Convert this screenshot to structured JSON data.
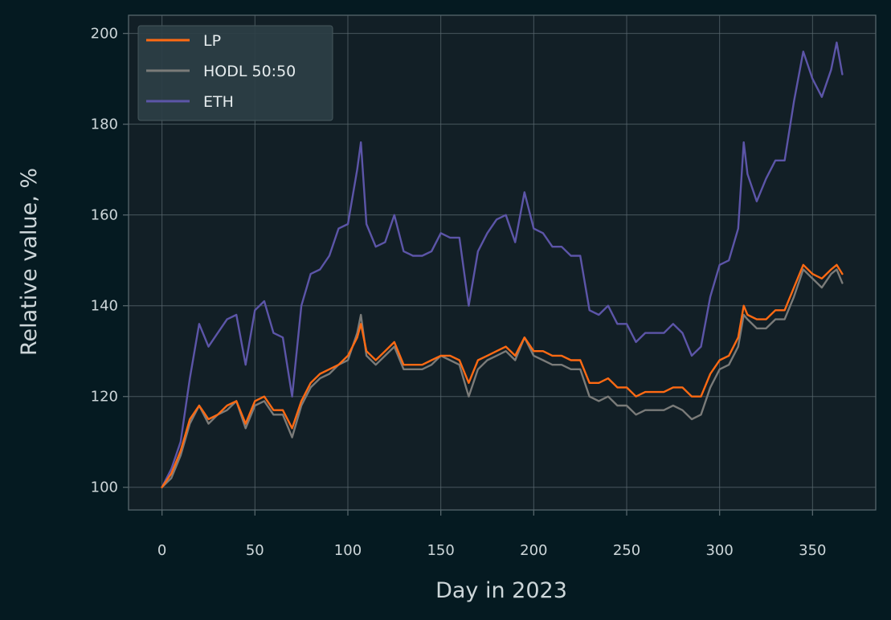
{
  "chart_data": {
    "type": "line",
    "xlabel": "Day in 2023",
    "ylabel": "Relative value, %",
    "xlim": [
      -18,
      384
    ],
    "ylim": [
      95,
      204
    ],
    "xticks": [
      0,
      50,
      100,
      150,
      200,
      250,
      300,
      350
    ],
    "yticks": [
      100,
      120,
      140,
      160,
      180,
      200
    ],
    "grid": true,
    "legend_position": "upper-left",
    "colors": {
      "background": "#051a21",
      "plot_background": "#121f26",
      "grid": "#5b6a70",
      "spine": "#56666c",
      "text": "#cdd6d9"
    },
    "series": [
      {
        "name": "LP",
        "color": "#ff6a13",
        "x": [
          0,
          5,
          10,
          15,
          20,
          25,
          30,
          35,
          40,
          45,
          50,
          55,
          60,
          65,
          70,
          75,
          80,
          85,
          90,
          95,
          100,
          105,
          107,
          110,
          115,
          120,
          125,
          130,
          135,
          140,
          145,
          150,
          155,
          160,
          165,
          170,
          175,
          180,
          185,
          190,
          195,
          200,
          205,
          210,
          215,
          220,
          225,
          230,
          235,
          240,
          245,
          250,
          255,
          260,
          265,
          270,
          275,
          280,
          285,
          290,
          295,
          300,
          305,
          310,
          313,
          315,
          320,
          325,
          330,
          335,
          340,
          345,
          350,
          355,
          360,
          363,
          366
        ],
        "y": [
          100,
          103,
          108,
          115,
          118,
          115,
          116,
          118,
          119,
          114,
          119,
          120,
          117,
          117,
          113,
          119,
          123,
          125,
          126,
          127,
          129,
          133,
          136,
          130,
          128,
          130,
          132,
          127,
          127,
          127,
          128,
          129,
          129,
          128,
          123,
          128,
          129,
          130,
          131,
          129,
          133,
          130,
          130,
          129,
          129,
          128,
          128,
          123,
          123,
          124,
          122,
          122,
          120,
          121,
          121,
          121,
          122,
          122,
          120,
          120,
          125,
          128,
          129,
          133,
          140,
          138,
          137,
          137,
          139,
          139,
          144,
          149,
          147,
          146,
          148,
          149,
          147
        ]
      },
      {
        "name": "HODL 50:50",
        "color": "#7a7b79",
        "x": [
          0,
          5,
          10,
          15,
          20,
          25,
          30,
          35,
          40,
          45,
          50,
          55,
          60,
          65,
          70,
          75,
          80,
          85,
          90,
          95,
          100,
          105,
          107,
          110,
          115,
          120,
          125,
          130,
          135,
          140,
          145,
          150,
          155,
          160,
          165,
          170,
          175,
          180,
          185,
          190,
          195,
          200,
          205,
          210,
          215,
          220,
          225,
          230,
          235,
          240,
          245,
          250,
          255,
          260,
          265,
          270,
          275,
          280,
          285,
          290,
          295,
          300,
          305,
          310,
          313,
          315,
          320,
          325,
          330,
          335,
          340,
          345,
          350,
          355,
          360,
          363,
          366
        ],
        "y": [
          100,
          102,
          107,
          114,
          118,
          114,
          116,
          117,
          119,
          113,
          118,
          119,
          116,
          116,
          111,
          118,
          122,
          124,
          125,
          127,
          128,
          134,
          138,
          129,
          127,
          129,
          131,
          126,
          126,
          126,
          127,
          129,
          128,
          127,
          120,
          126,
          128,
          129,
          130,
          128,
          133,
          129,
          128,
          127,
          127,
          126,
          126,
          120,
          119,
          120,
          118,
          118,
          116,
          117,
          117,
          117,
          118,
          117,
          115,
          116,
          122,
          126,
          127,
          131,
          138,
          137,
          135,
          135,
          137,
          137,
          142,
          148,
          146,
          144,
          147,
          148,
          145
        ]
      },
      {
        "name": "ETH",
        "color": "#5c55a8",
        "x": [
          0,
          5,
          10,
          15,
          20,
          25,
          30,
          35,
          40,
          45,
          50,
          55,
          60,
          65,
          70,
          75,
          80,
          85,
          90,
          95,
          100,
          105,
          107,
          110,
          115,
          120,
          125,
          130,
          135,
          140,
          145,
          150,
          155,
          160,
          165,
          170,
          175,
          180,
          185,
          190,
          195,
          200,
          205,
          210,
          215,
          220,
          225,
          230,
          235,
          240,
          245,
          250,
          255,
          260,
          265,
          270,
          275,
          280,
          285,
          290,
          295,
          300,
          305,
          310,
          313,
          315,
          320,
          325,
          330,
          335,
          340,
          345,
          350,
          355,
          360,
          363,
          366
        ],
        "y": [
          100,
          104,
          110,
          124,
          136,
          131,
          134,
          137,
          138,
          127,
          139,
          141,
          134,
          133,
          120,
          140,
          147,
          148,
          151,
          157,
          158,
          170,
          176,
          158,
          153,
          154,
          160,
          152,
          151,
          151,
          152,
          156,
          155,
          155,
          140,
          152,
          156,
          159,
          160,
          154,
          165,
          157,
          156,
          153,
          153,
          151,
          151,
          139,
          138,
          140,
          136,
          136,
          132,
          134,
          134,
          134,
          136,
          134,
          129,
          131,
          142,
          149,
          150,
          157,
          176,
          169,
          163,
          168,
          172,
          172,
          185,
          196,
          190,
          186,
          192,
          198,
          191
        ]
      }
    ]
  }
}
